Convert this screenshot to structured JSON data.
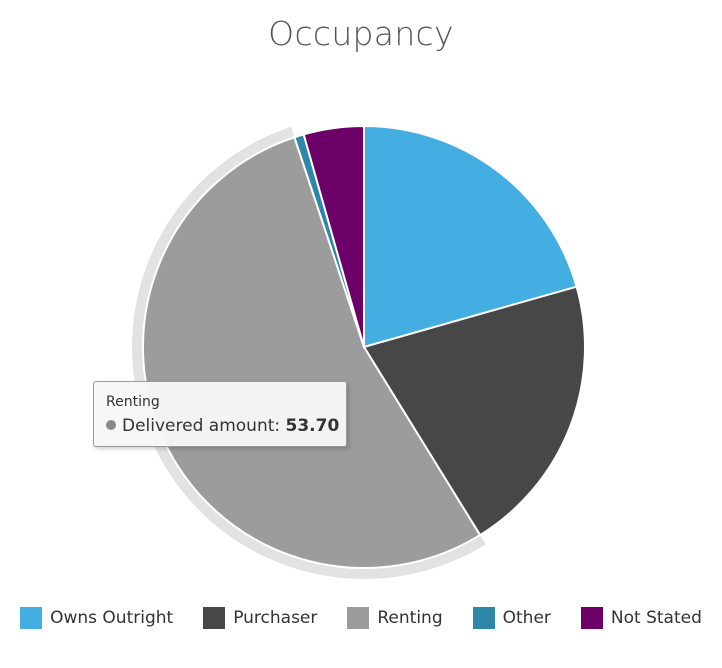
{
  "chart_data": {
    "type": "pie",
    "title": "Occupancy",
    "categories": [
      "Owns Outright",
      "Purchaser",
      "Renting",
      "Other",
      "Not Stated"
    ],
    "values": [
      20.6,
      20.6,
      53.7,
      0.7,
      4.4
    ],
    "colors": [
      "#44ADE2",
      "#474747",
      "#9C9C9C",
      "#2E86A8",
      "#6C0068"
    ],
    "legend": "bottom",
    "hovered": "Renting",
    "tooltip": {
      "title": "Renting",
      "label": "Delivered amount: ",
      "value": "53.70"
    }
  }
}
